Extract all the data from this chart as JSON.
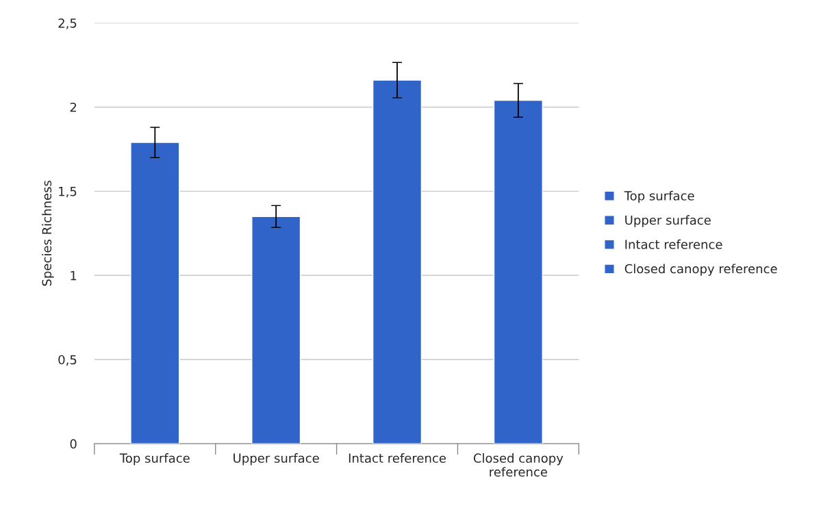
{
  "chart_data": {
    "type": "bar",
    "ylabel": "Species Richness",
    "categories": [
      "Top surface",
      "Upper surface",
      "Intact reference",
      "Closed canopy\nreference"
    ],
    "series": [
      {
        "name": "Top surface",
        "color": "#3064c8",
        "values": [
          1.79,
          null,
          null,
          null
        ],
        "errors": [
          0.09,
          null,
          null,
          null
        ]
      },
      {
        "name": "Upper surface",
        "color": "#3064c8",
        "values": [
          null,
          1.35,
          null,
          null
        ],
        "errors": [
          null,
          0.065,
          null,
          null
        ]
      },
      {
        "name": "Intact reference",
        "color": "#3064c8",
        "values": [
          null,
          null,
          2.16,
          null
        ],
        "errors": [
          null,
          null,
          0.105,
          null
        ]
      },
      {
        "name": "Closed canopy reference",
        "color": "#3064c8",
        "values": [
          null,
          null,
          null,
          2.04
        ],
        "errors": [
          null,
          null,
          null,
          0.1
        ]
      }
    ],
    "ylim": [
      0,
      2.5
    ],
    "yticks": [
      0,
      {
        "value": 0.5,
        "label": "0,5"
      },
      1,
      {
        "value": 1.5,
        "label": "1,5"
      },
      2,
      {
        "value": 2.5,
        "label": "2,5"
      }
    ],
    "grid": "y",
    "legend": "right"
  }
}
